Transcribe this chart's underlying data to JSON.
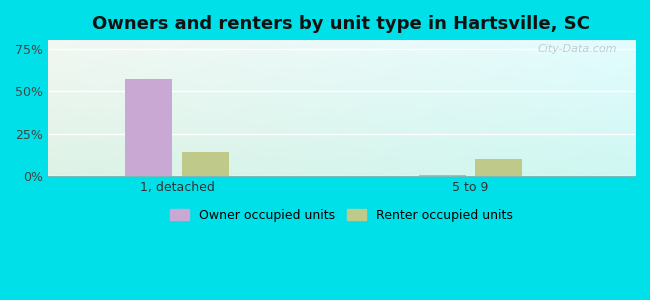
{
  "title": "Owners and renters by unit type in Hartsville, SC",
  "categories": [
    "1, detached",
    "5 to 9"
  ],
  "owner_values": [
    57.0,
    1.0
  ],
  "renter_values": [
    14.0,
    10.0
  ],
  "owner_color": "#c9a8d4",
  "renter_color": "#bfc98a",
  "owner_label": "Owner occupied units",
  "renter_label": "Renter occupied units",
  "yticks": [
    0,
    25,
    50,
    75
  ],
  "ytick_labels": [
    "0%",
    "25%",
    "50%",
    "75%"
  ],
  "ylim": [
    0,
    80
  ],
  "outer_bg": "#00e0e8",
  "watermark": "City-Data.com",
  "title_fontsize": 13,
  "bar_width": 0.08,
  "group_centers": [
    0.22,
    0.72
  ],
  "xlim": [
    0.0,
    1.0
  ]
}
